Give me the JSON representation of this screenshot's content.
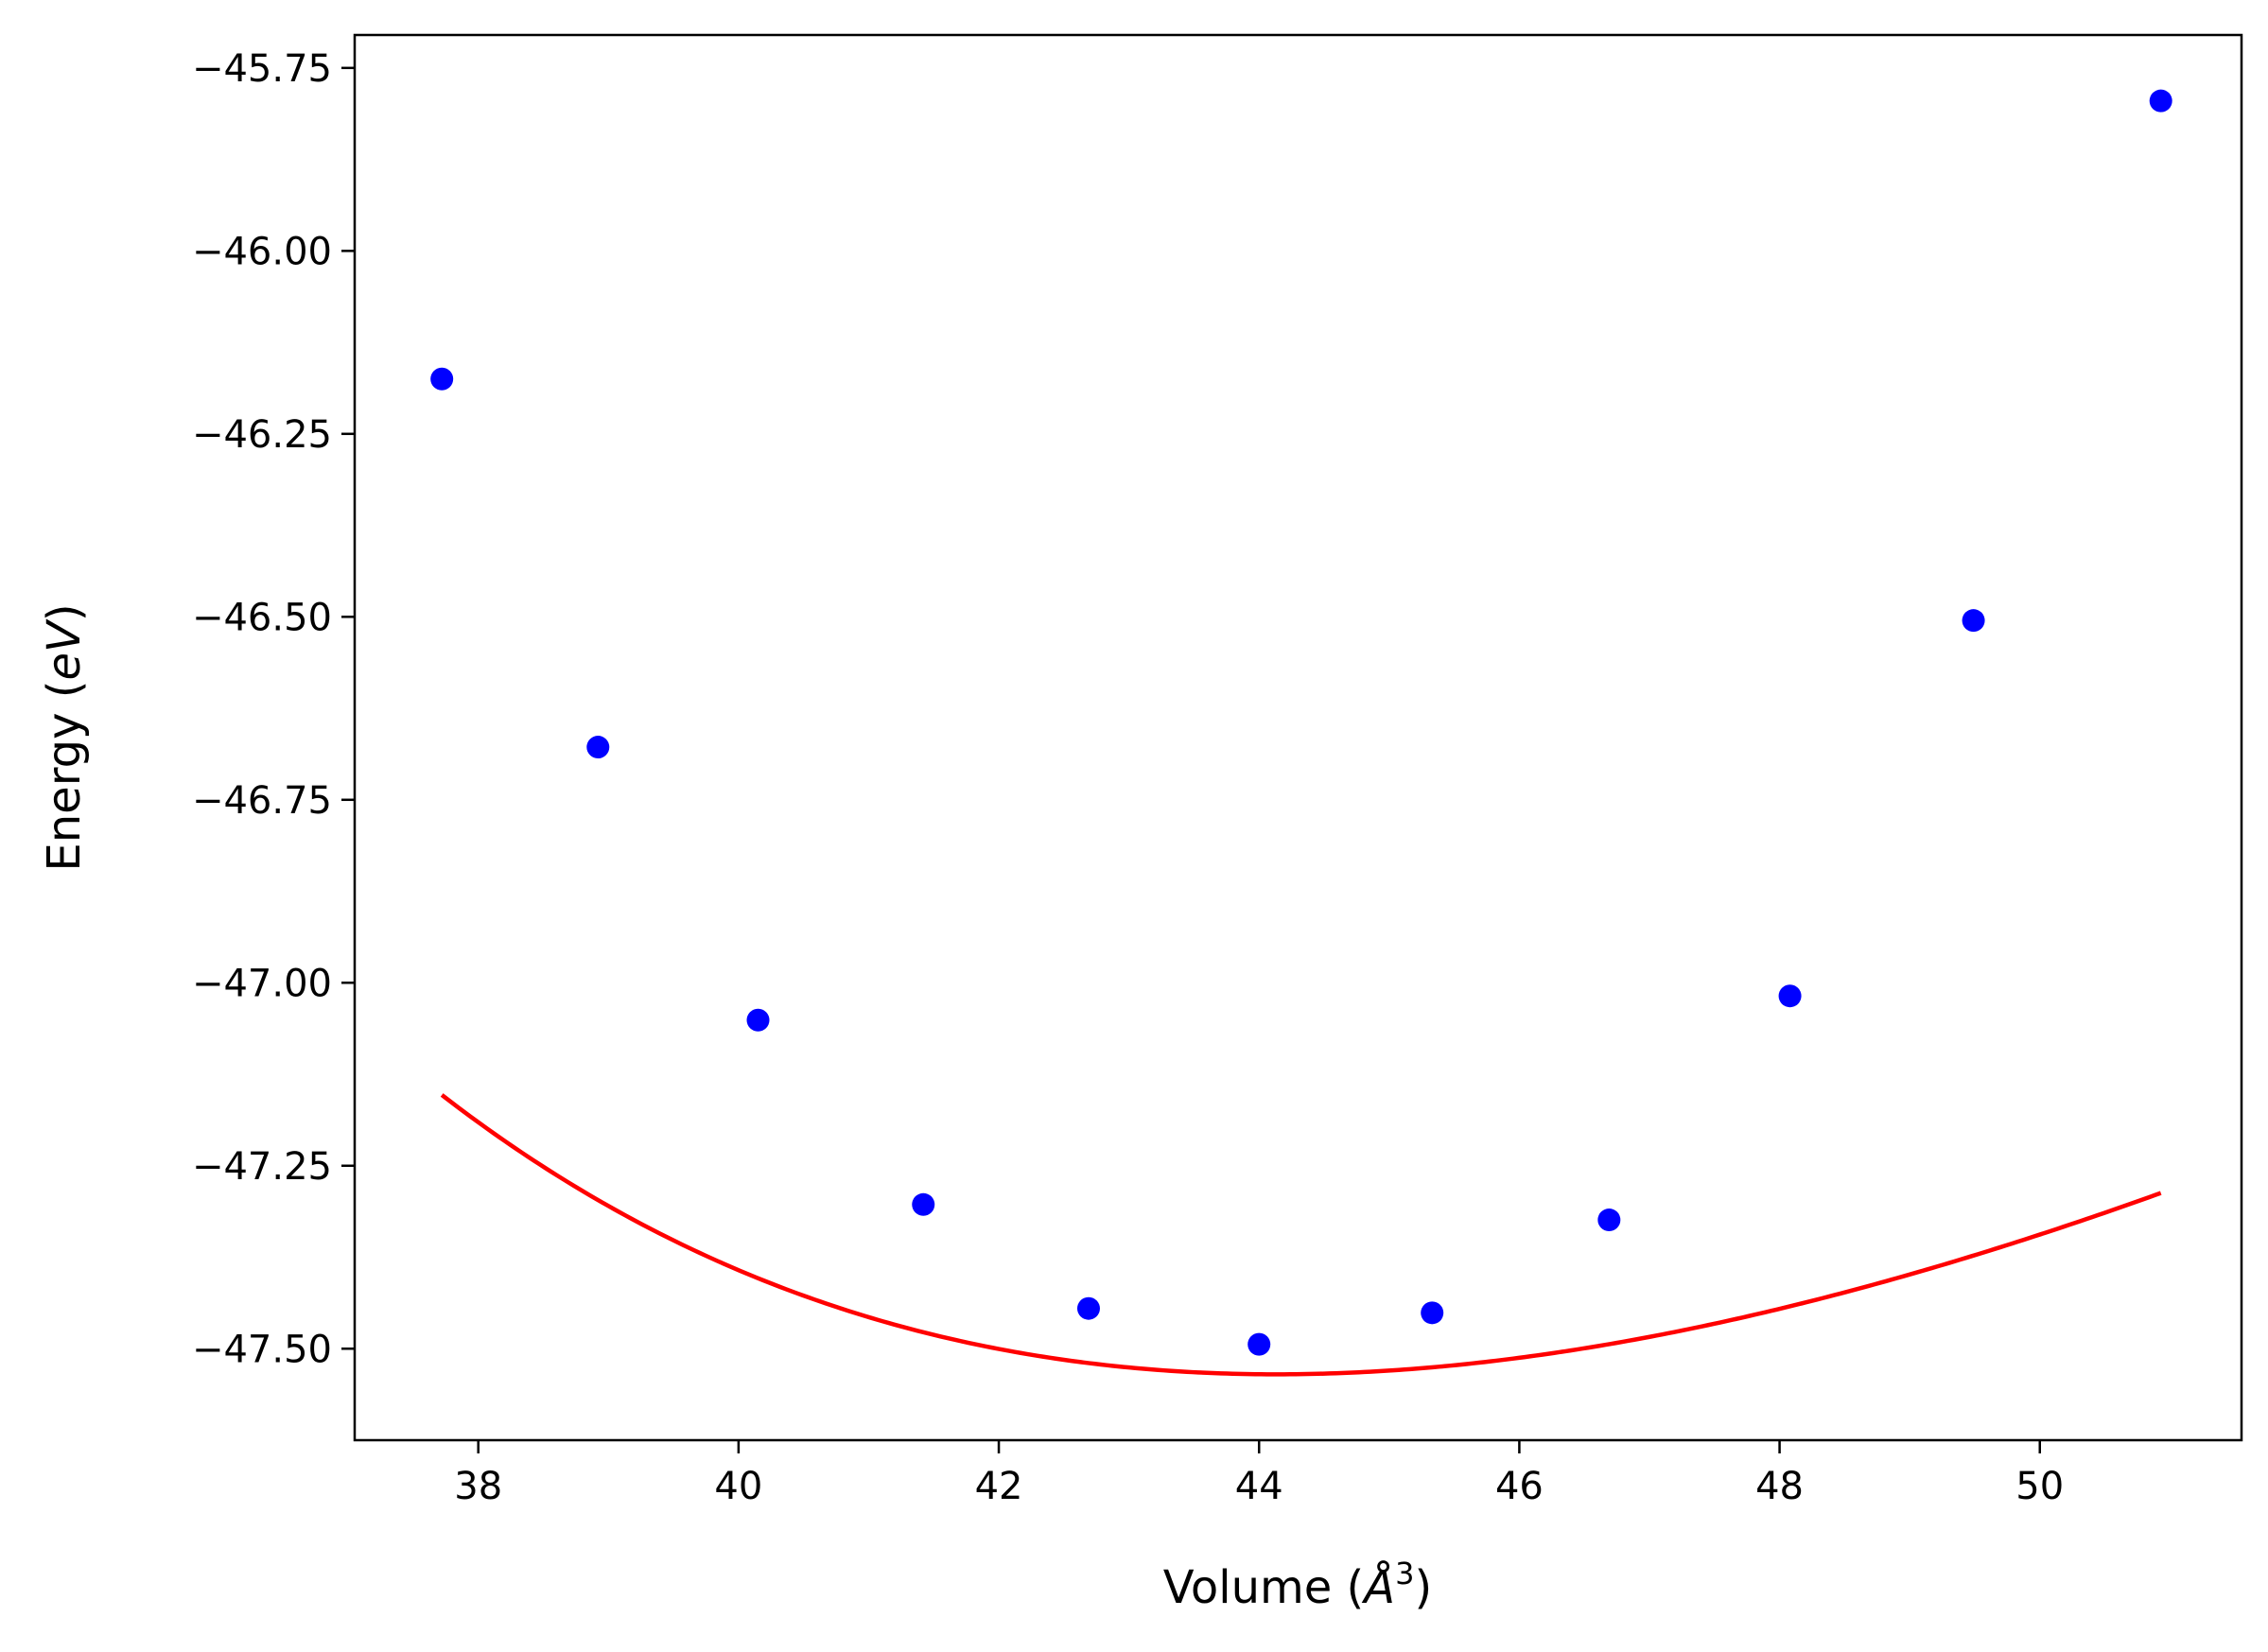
{
  "chart_data": {
    "type": "scatter",
    "title": "",
    "xlabel": "Volume (",
    "xlabel_unit": "Å",
    "xlabel_sup": "3",
    "xlabel_close": ")",
    "ylabel": "Energy (",
    "ylabel_unit": "eV",
    "ylabel_close": ")",
    "xlim": [
      37.05,
      51.55
    ],
    "ylim": [
      -47.625,
      -45.705
    ],
    "xticks": [
      38,
      40,
      42,
      44,
      46,
      48,
      50
    ],
    "xtick_labels": [
      "38",
      "40",
      "42",
      "44",
      "46",
      "48",
      "50"
    ],
    "yticks": [
      -45.75,
      -46.0,
      -46.25,
      -46.5,
      -46.75,
      -47.0,
      -47.25,
      -47.5
    ],
    "ytick_labels": [
      "−45.75",
      "−46.00",
      "−46.25",
      "−46.50",
      "−46.75",
      "−47.00",
      "−47.25",
      "−47.50"
    ],
    "grid": false,
    "points": {
      "color": "#0000ff",
      "x": [
        37.72,
        38.92,
        40.15,
        41.42,
        42.69,
        44.0,
        45.33,
        46.69,
        48.08,
        49.49,
        50.93
      ],
      "y": [
        -46.175,
        -46.678,
        -47.051,
        -47.303,
        -47.445,
        -47.494,
        -47.451,
        -47.324,
        -47.018,
        -46.505,
        -45.795
      ]
    },
    "fit_curve": {
      "color": "#ff0000",
      "x_min": 37.72,
      "x_max": 50.93,
      "v0": 44.13,
      "e0": -47.535,
      "b0": 0.615,
      "b0_prime": 4.5
    }
  }
}
